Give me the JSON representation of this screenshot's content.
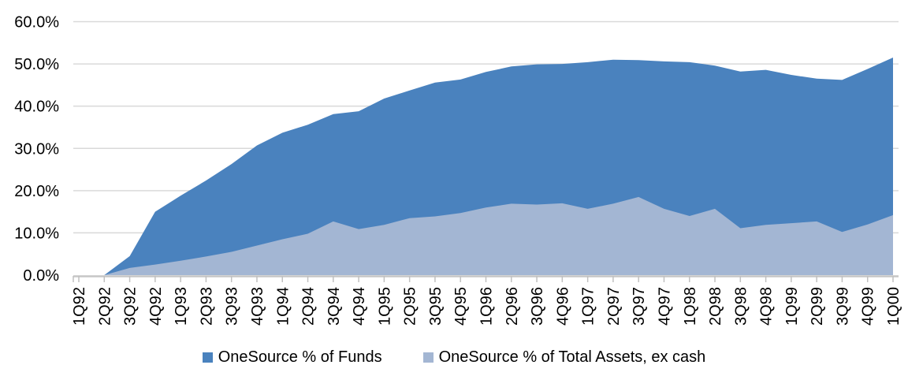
{
  "chart_data": {
    "type": "area",
    "overlap": true,
    "title": "",
    "categories": [
      "1Q92",
      "2Q92",
      "3Q92",
      "4Q92",
      "1Q93",
      "2Q93",
      "3Q93",
      "4Q93",
      "1Q94",
      "2Q94",
      "3Q94",
      "4Q94",
      "1Q95",
      "2Q95",
      "3Q95",
      "4Q95",
      "1Q96",
      "2Q96",
      "3Q96",
      "4Q96",
      "1Q97",
      "2Q97",
      "3Q97",
      "4Q97",
      "1Q98",
      "2Q98",
      "3Q98",
      "4Q98",
      "1Q99",
      "2Q99",
      "3Q99",
      "4Q99",
      "1Q00"
    ],
    "series": [
      {
        "name": "OneSource % of Funds",
        "color": "#4A82BE",
        "values": [
          0.0,
          0.0,
          4.5,
          15.0,
          18.8,
          22.4,
          26.3,
          30.7,
          33.7,
          35.6,
          38.1,
          38.8,
          41.8,
          43.7,
          45.6,
          46.3,
          48.1,
          49.4,
          49.9,
          50.0,
          50.4,
          51.0,
          50.9,
          50.6,
          50.4,
          49.6,
          48.2,
          48.6,
          47.4,
          46.5,
          46.2,
          48.8,
          51.5
        ]
      },
      {
        "name": "OneSource % of Total Assets, ex cash",
        "color": "#A3B6D3",
        "values": [
          0.0,
          0.0,
          1.7,
          2.5,
          3.4,
          4.4,
          5.5,
          7.0,
          8.5,
          9.8,
          12.7,
          10.9,
          11.9,
          13.5,
          13.9,
          14.7,
          16.0,
          16.9,
          16.7,
          17.0,
          15.7,
          16.9,
          18.5,
          15.7,
          14.0,
          15.7,
          11.1,
          11.9,
          12.3,
          12.7,
          10.2,
          12.0,
          14.2
        ]
      }
    ],
    "y_axis": {
      "min": 0,
      "max": 60,
      "step": 10,
      "tick_labels": [
        "0.0%",
        "10.0%",
        "20.0%",
        "30.0%",
        "40.0%",
        "50.0%",
        "60.0%"
      ]
    },
    "x_axis": {
      "tick_labels_rotated": true
    },
    "legend_position": "bottom",
    "grid": true,
    "colors": {
      "background": "#FFFFFF",
      "gridline": "#D9D9D9",
      "axis_line": "#C6C6C6",
      "tick": "#C0C0C0",
      "text": "#000000"
    }
  }
}
